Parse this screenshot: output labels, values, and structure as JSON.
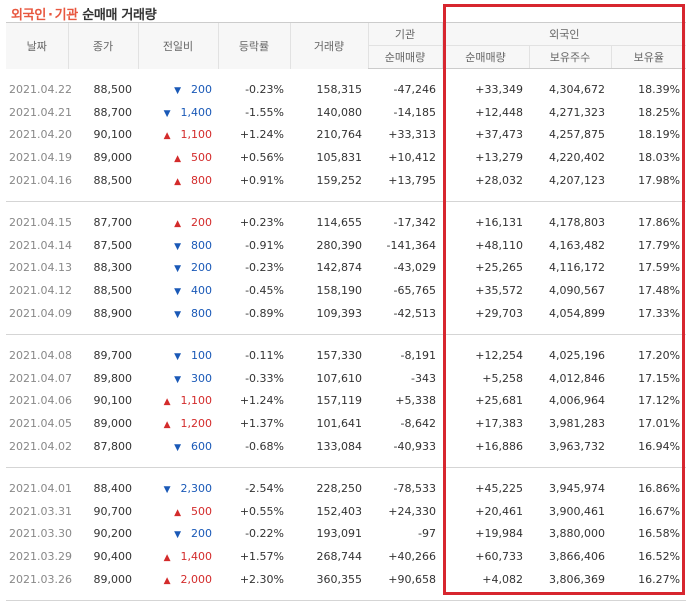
{
  "title": {
    "part1": "외국인",
    "sep": "·",
    "part2": "기관",
    "part3": "순매매 거래량"
  },
  "headers": {
    "date": "날짜",
    "close": "종가",
    "change": "전일비",
    "rate": "등락률",
    "volume": "거래량",
    "inst_group": "기관",
    "inst_net": "순매매량",
    "foreign_group": "외국인",
    "foreign_net": "순매매량",
    "foreign_hold": "보유주수",
    "foreign_ratio": "보유율"
  },
  "colors": {
    "up": "#d32b2b",
    "down": "#1a59b7",
    "highlight": "#d7262f",
    "title_accent": "#e8573f"
  },
  "groups": [
    {
      "rows": [
        {
          "date": "2021.04.22",
          "close": "88,500",
          "dir": "down",
          "change": "200",
          "rate": "-0.23%",
          "volume": "158,315",
          "inst": "-47,246",
          "foreign": "+33,349",
          "hold": "4,304,672",
          "ratio": "18.39%"
        },
        {
          "date": "2021.04.21",
          "close": "88,700",
          "dir": "down",
          "change": "1,400",
          "rate": "-1.55%",
          "volume": "140,080",
          "inst": "-14,185",
          "foreign": "+12,448",
          "hold": "4,271,323",
          "ratio": "18.25%"
        },
        {
          "date": "2021.04.20",
          "close": "90,100",
          "dir": "up",
          "change": "1,100",
          "rate": "+1.24%",
          "volume": "210,764",
          "inst": "+33,313",
          "foreign": "+37,473",
          "hold": "4,257,875",
          "ratio": "18.19%"
        },
        {
          "date": "2021.04.19",
          "close": "89,000",
          "dir": "up",
          "change": "500",
          "rate": "+0.56%",
          "volume": "105,831",
          "inst": "+10,412",
          "foreign": "+13,279",
          "hold": "4,220,402",
          "ratio": "18.03%"
        },
        {
          "date": "2021.04.16",
          "close": "88,500",
          "dir": "up",
          "change": "800",
          "rate": "+0.91%",
          "volume": "159,252",
          "inst": "+13,795",
          "foreign": "+28,032",
          "hold": "4,207,123",
          "ratio": "17.98%"
        }
      ]
    },
    {
      "rows": [
        {
          "date": "2021.04.15",
          "close": "87,700",
          "dir": "up",
          "change": "200",
          "rate": "+0.23%",
          "volume": "114,655",
          "inst": "-17,342",
          "foreign": "+16,131",
          "hold": "4,178,803",
          "ratio": "17.86%"
        },
        {
          "date": "2021.04.14",
          "close": "87,500",
          "dir": "down",
          "change": "800",
          "rate": "-0.91%",
          "volume": "280,390",
          "inst": "-141,364",
          "foreign": "+48,110",
          "hold": "4,163,482",
          "ratio": "17.79%"
        },
        {
          "date": "2021.04.13",
          "close": "88,300",
          "dir": "down",
          "change": "200",
          "rate": "-0.23%",
          "volume": "142,874",
          "inst": "-43,029",
          "foreign": "+25,265",
          "hold": "4,116,172",
          "ratio": "17.59%"
        },
        {
          "date": "2021.04.12",
          "close": "88,500",
          "dir": "down",
          "change": "400",
          "rate": "-0.45%",
          "volume": "158,190",
          "inst": "-65,765",
          "foreign": "+35,572",
          "hold": "4,090,567",
          "ratio": "17.48%"
        },
        {
          "date": "2021.04.09",
          "close": "88,900",
          "dir": "down",
          "change": "800",
          "rate": "-0.89%",
          "volume": "109,393",
          "inst": "-42,513",
          "foreign": "+29,703",
          "hold": "4,054,899",
          "ratio": "17.33%"
        }
      ]
    },
    {
      "rows": [
        {
          "date": "2021.04.08",
          "close": "89,700",
          "dir": "down",
          "change": "100",
          "rate": "-0.11%",
          "volume": "157,330",
          "inst": "-8,191",
          "foreign": "+12,254",
          "hold": "4,025,196",
          "ratio": "17.20%"
        },
        {
          "date": "2021.04.07",
          "close": "89,800",
          "dir": "down",
          "change": "300",
          "rate": "-0.33%",
          "volume": "107,610",
          "inst": "-343",
          "foreign": "+5,258",
          "hold": "4,012,846",
          "ratio": "17.15%"
        },
        {
          "date": "2021.04.06",
          "close": "90,100",
          "dir": "up",
          "change": "1,100",
          "rate": "+1.24%",
          "volume": "157,119",
          "inst": "+5,338",
          "foreign": "+25,681",
          "hold": "4,006,964",
          "ratio": "17.12%"
        },
        {
          "date": "2021.04.05",
          "close": "89,000",
          "dir": "up",
          "change": "1,200",
          "rate": "+1.37%",
          "volume": "101,641",
          "inst": "-8,642",
          "foreign": "+17,383",
          "hold": "3,981,283",
          "ratio": "17.01%"
        },
        {
          "date": "2021.04.02",
          "close": "87,800",
          "dir": "down",
          "change": "600",
          "rate": "-0.68%",
          "volume": "133,084",
          "inst": "-40,933",
          "foreign": "+16,886",
          "hold": "3,963,732",
          "ratio": "16.94%"
        }
      ]
    },
    {
      "rows": [
        {
          "date": "2021.04.01",
          "close": "88,400",
          "dir": "down",
          "change": "2,300",
          "rate": "-2.54%",
          "volume": "228,250",
          "inst": "-78,533",
          "foreign": "+45,225",
          "hold": "3,945,974",
          "ratio": "16.86%"
        },
        {
          "date": "2021.03.31",
          "close": "90,700",
          "dir": "up",
          "change": "500",
          "rate": "+0.55%",
          "volume": "152,403",
          "inst": "+24,330",
          "foreign": "+20,461",
          "hold": "3,900,461",
          "ratio": "16.67%"
        },
        {
          "date": "2021.03.30",
          "close": "90,200",
          "dir": "down",
          "change": "200",
          "rate": "-0.22%",
          "volume": "193,091",
          "inst": "-97",
          "foreign": "+19,984",
          "hold": "3,880,000",
          "ratio": "16.58%"
        },
        {
          "date": "2021.03.29",
          "close": "90,400",
          "dir": "up",
          "change": "1,400",
          "rate": "+1.57%",
          "volume": "268,744",
          "inst": "+40,266",
          "foreign": "+60,733",
          "hold": "3,866,406",
          "ratio": "16.52%"
        },
        {
          "date": "2021.03.26",
          "close": "89,000",
          "dir": "up",
          "change": "2,000",
          "rate": "+2.30%",
          "volume": "360,355",
          "inst": "+90,658",
          "foreign": "+4,082",
          "hold": "3,806,369",
          "ratio": "16.27%"
        }
      ]
    }
  ]
}
